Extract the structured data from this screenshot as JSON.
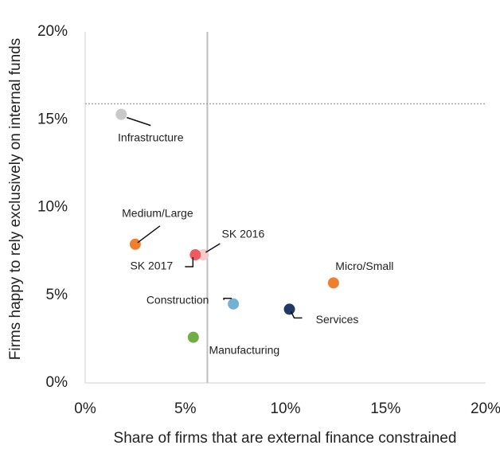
{
  "chart_data": {
    "type": "scatter",
    "x_label": "Share of firms that are external finance constrained",
    "y_label": "Firms happy to rely exclusively on internal funds",
    "xlim": [
      0,
      20
    ],
    "ylim": [
      0,
      20
    ],
    "xticks": [
      {
        "value": 0,
        "label": "0%"
      },
      {
        "value": 5,
        "label": "5%"
      },
      {
        "value": 10,
        "label": "10%"
      },
      {
        "value": 15,
        "label": "15%"
      },
      {
        "value": 20,
        "label": "20%"
      }
    ],
    "yticks": [
      {
        "value": 0,
        "label": "0%"
      },
      {
        "value": 5,
        "label": "5%"
      },
      {
        "value": 10,
        "label": "10%"
      },
      {
        "value": 15,
        "label": "15%"
      },
      {
        "value": 20,
        "label": "20%"
      }
    ],
    "reference_x": 6.1,
    "reference_y": 15.9,
    "points": [
      {
        "name": "Infrastructure",
        "x": 1.8,
        "y": 15.3,
        "color": "#c9c9c9"
      },
      {
        "name": "Medium/Large",
        "x": 2.5,
        "y": 7.9,
        "color": "#f07f2c"
      },
      {
        "name": "SK 2016",
        "x": 5.9,
        "y": 7.3,
        "color": "#f9c8c8"
      },
      {
        "name": "SK 2017",
        "x": 5.5,
        "y": 7.3,
        "color": "#f05a5f"
      },
      {
        "name": "Micro/Small",
        "x": 12.4,
        "y": 5.7,
        "color": "#f07f2c"
      },
      {
        "name": "Construction",
        "x": 7.4,
        "y": 4.5,
        "color": "#72b1d1"
      },
      {
        "name": "Services",
        "x": 10.2,
        "y": 4.2,
        "color": "#1f3864"
      },
      {
        "name": "Manufacturing",
        "x": 5.4,
        "y": 2.6,
        "color": "#70ad47"
      }
    ]
  }
}
